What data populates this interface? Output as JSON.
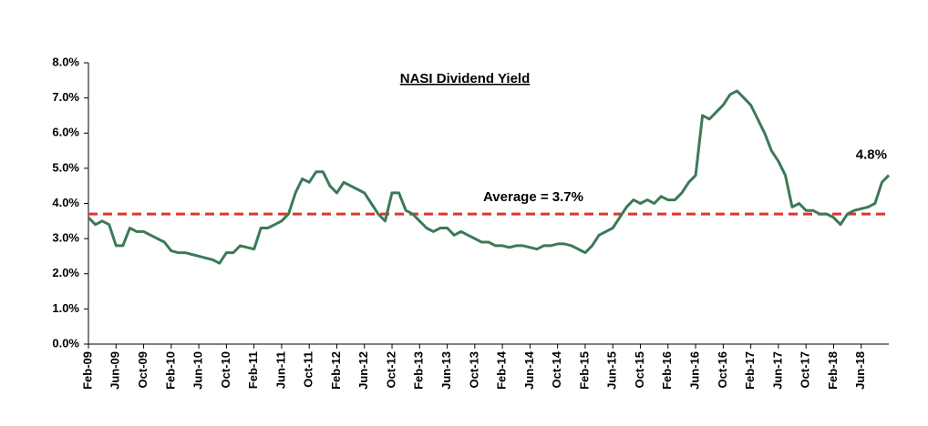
{
  "chart_data": {
    "type": "line",
    "title": "NASI Dividend Yield",
    "annotation": "Average = 3.7%",
    "average": 3.7,
    "average_color": "#e3342a",
    "categories": [
      "Feb-09",
      null,
      null,
      null,
      "Jun-09",
      null,
      null,
      null,
      "Oct-09",
      null,
      null,
      null,
      "Feb-10",
      null,
      null,
      null,
      "Jun-10",
      null,
      null,
      null,
      "Oct-10",
      null,
      null,
      null,
      "Feb-11",
      null,
      null,
      null,
      "Jun-11",
      null,
      null,
      null,
      "Oct-11",
      null,
      null,
      null,
      "Feb-12",
      null,
      null,
      null,
      "Jun-12",
      null,
      null,
      null,
      "Oct-12",
      null,
      null,
      null,
      "Feb-13",
      null,
      null,
      null,
      "Jun-13",
      null,
      null,
      null,
      "Oct-13",
      null,
      null,
      null,
      "Feb-14",
      null,
      null,
      null,
      "Jun-14",
      null,
      null,
      null,
      "Oct-14",
      null,
      null,
      null,
      "Feb-15",
      null,
      null,
      null,
      "Jun-15",
      null,
      null,
      null,
      "Oct-15",
      null,
      null,
      null,
      "Feb-16",
      null,
      null,
      null,
      "Jun-16",
      null,
      null,
      null,
      "Oct-16",
      null,
      null,
      null,
      "Feb-17",
      null,
      null,
      null,
      "Jun-17",
      null,
      null,
      null,
      "Oct-17",
      null,
      null,
      null,
      "Feb-18",
      null,
      null,
      null,
      "Jun-18",
      null,
      null,
      null,
      null
    ],
    "series": [
      {
        "color": "#3b7a57",
        "values": [
          3.6,
          3.4,
          3.5,
          3.4,
          2.8,
          2.8,
          3.3,
          3.2,
          3.2,
          3.1,
          3.0,
          2.9,
          2.65,
          2.6,
          2.6,
          2.55,
          2.5,
          2.45,
          2.4,
          2.3,
          2.6,
          2.6,
          2.8,
          2.75,
          2.7,
          3.3,
          3.3,
          3.4,
          3.5,
          3.7,
          4.3,
          4.7,
          4.6,
          4.9,
          4.9,
          4.5,
          4.3,
          4.6,
          4.5,
          4.4,
          4.3,
          4.0,
          3.7,
          3.5,
          4.3,
          4.3,
          3.8,
          3.7,
          3.5,
          3.3,
          3.2,
          3.3,
          3.3,
          3.1,
          3.2,
          3.1,
          3.0,
          2.9,
          2.9,
          2.8,
          2.8,
          2.75,
          2.8,
          2.8,
          2.75,
          2.7,
          2.8,
          2.8,
          2.85,
          2.85,
          2.8,
          2.7,
          2.6,
          2.8,
          3.1,
          3.2,
          3.3,
          3.6,
          3.9,
          4.1,
          4.0,
          4.1,
          4.0,
          4.2,
          4.1,
          4.1,
          4.3,
          4.6,
          4.8,
          6.5,
          6.4,
          6.6,
          6.8,
          7.1,
          7.2,
          7.0,
          6.8,
          6.4,
          6.0,
          5.5,
          5.2,
          4.8,
          3.9,
          4.0,
          3.8,
          3.8,
          3.7,
          3.7,
          3.6,
          3.4,
          3.7,
          3.8,
          3.85,
          3.9,
          4.0,
          4.6,
          4.8
        ],
        "value_labels": [
          null,
          null,
          null,
          null,
          null,
          null,
          null,
          null,
          null,
          null,
          null,
          null,
          null,
          null,
          null,
          null,
          null,
          null,
          null,
          null,
          null,
          null,
          null,
          null,
          null,
          null,
          null,
          null,
          null,
          null,
          null,
          null,
          null,
          null,
          null,
          null,
          null,
          null,
          null,
          null,
          null,
          null,
          null,
          null,
          null,
          null,
          null,
          null,
          null,
          null,
          null,
          null,
          null,
          null,
          null,
          null,
          null,
          null,
          null,
          null,
          null,
          null,
          null,
          null,
          null,
          null,
          null,
          null,
          null,
          null,
          null,
          null,
          null,
          null,
          null,
          null,
          null,
          null,
          null,
          null,
          null,
          null,
          null,
          null,
          null,
          null,
          null,
          null,
          null,
          null,
          null,
          null,
          null,
          null,
          null,
          null,
          null,
          null,
          null,
          null,
          null,
          null,
          null,
          null,
          null,
          null,
          null,
          null,
          null,
          null,
          null,
          null,
          null,
          null,
          null,
          null,
          "4.8%"
        ]
      }
    ],
    "ylim": [
      0,
      8
    ],
    "yticks": [
      {
        "value": 0,
        "label": "0.0%"
      },
      {
        "value": 1,
        "label": "1.0%"
      },
      {
        "value": 2,
        "label": "2.0%"
      },
      {
        "value": 3,
        "label": "3.0%"
      },
      {
        "value": 4,
        "label": "4.0%"
      },
      {
        "value": 5,
        "label": "5.0%"
      },
      {
        "value": 6,
        "label": "6.0%"
      },
      {
        "value": 7,
        "label": "7.0%"
      },
      {
        "value": 8,
        "label": "8.0%"
      }
    ]
  }
}
